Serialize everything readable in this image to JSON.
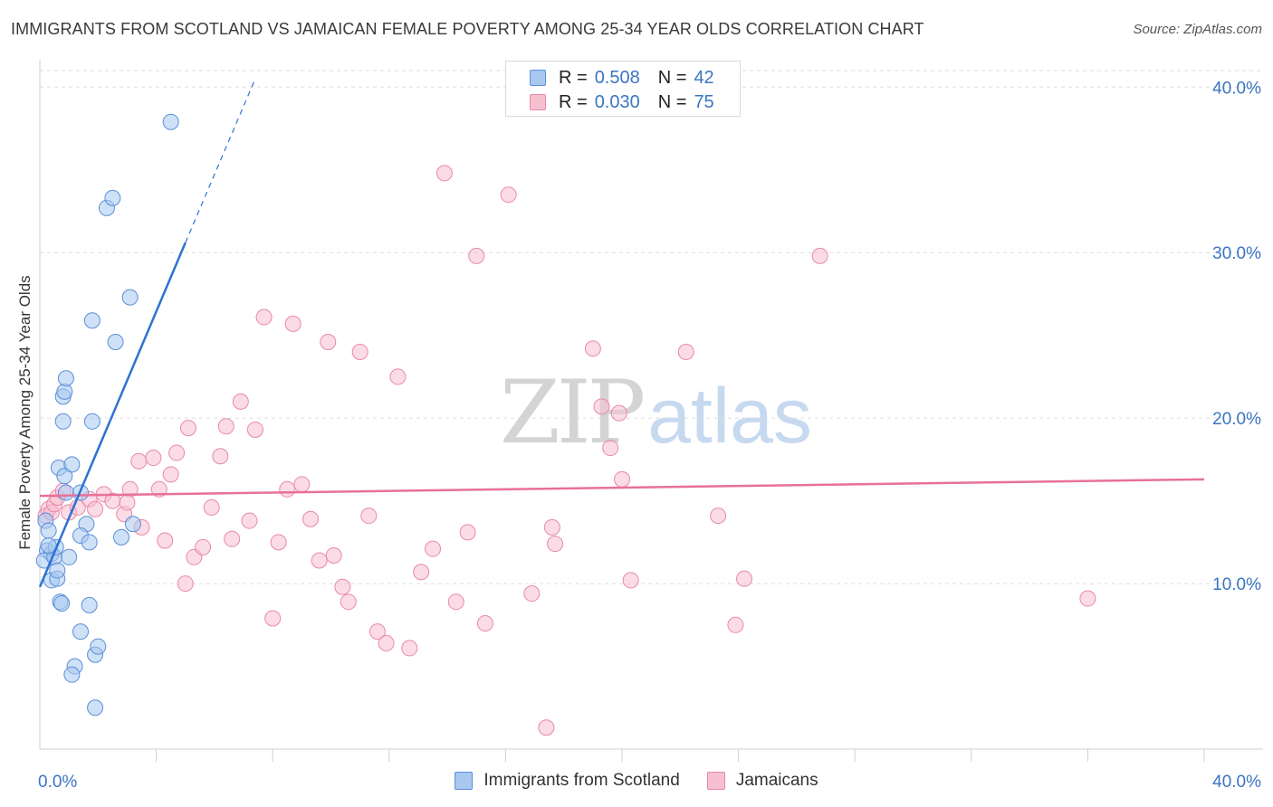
{
  "title": "IMMIGRANTS FROM SCOTLAND VS JAMAICAN FEMALE POVERTY AMONG 25-34 YEAR OLDS CORRELATION CHART",
  "source": "Source: ZipAtlas.com",
  "watermark": {
    "zip": "ZIP",
    "atlas": "atlas"
  },
  "legend_top": {
    "rows": [
      {
        "r_label": "R =",
        "r_value": "0.508",
        "n_label": "N =",
        "n_value": "42"
      },
      {
        "r_label": "R =",
        "r_value": "0.030",
        "n_label": "N =",
        "n_value": "75"
      }
    ]
  },
  "legend_bottom": {
    "items": [
      {
        "label": "Immigrants from Scotland"
      },
      {
        "label": "Jamaicans"
      }
    ]
  },
  "colors": {
    "blue_fill": "#a8c8f0",
    "blue_stroke": "#5b8fd6",
    "blue_line": "#2d72d2",
    "pink_fill": "#f7c0d1",
    "pink_stroke": "#e889a7",
    "pink_line": "#e8709a",
    "axis_label": "#3a75c4",
    "grid": "#dddddd"
  },
  "chart_data": {
    "type": "scatter",
    "title": "IMMIGRANTS FROM SCOTLAND VS JAMAICAN FEMALE POVERTY AMONG 25-34 YEAR OLDS CORRELATION CHART",
    "xlabel": "",
    "ylabel": "Female Poverty Among 25-34 Year Olds",
    "xlim": [
      0,
      40
    ],
    "ylim": [
      0,
      41
    ],
    "x_tick_labels": [
      {
        "value": 0,
        "label": "0.0%"
      },
      {
        "value": 40,
        "label": "40.0%"
      }
    ],
    "y_tick_labels": [
      {
        "value": 10,
        "label": "10.0%"
      },
      {
        "value": 20,
        "label": "20.0%"
      },
      {
        "value": 30,
        "label": "30.0%"
      },
      {
        "value": 40,
        "label": "40.0%"
      }
    ],
    "x_minor_ticks": [
      4,
      8,
      12,
      16,
      20,
      24,
      28,
      32,
      36,
      40
    ],
    "series": [
      {
        "name": "Immigrants from Scotland",
        "color": "blue",
        "r": 0.508,
        "n": 42,
        "trend": {
          "x0": 0,
          "y0": 9.8,
          "x1": 5.0,
          "y1": 30.6,
          "dash_x1": 7.4,
          "dash_y1": 40.5
        },
        "points": [
          [
            0.2,
            13.8
          ],
          [
            0.3,
            13.2
          ],
          [
            0.25,
            12.0
          ],
          [
            0.4,
            11.8
          ],
          [
            0.15,
            11.4
          ],
          [
            0.5,
            11.6
          ],
          [
            0.55,
            12.2
          ],
          [
            0.4,
            10.2
          ],
          [
            0.6,
            10.3
          ],
          [
            0.6,
            10.8
          ],
          [
            0.7,
            8.9
          ],
          [
            0.75,
            8.8
          ],
          [
            0.65,
            17.0
          ],
          [
            0.85,
            16.5
          ],
          [
            1.1,
            17.2
          ],
          [
            0.9,
            15.5
          ],
          [
            1.4,
            15.5
          ],
          [
            0.8,
            19.8
          ],
          [
            0.8,
            21.3
          ],
          [
            0.85,
            21.6
          ],
          [
            0.9,
            22.4
          ],
          [
            1.8,
            19.8
          ],
          [
            1.6,
            13.6
          ],
          [
            1.4,
            12.9
          ],
          [
            1.7,
            12.5
          ],
          [
            1.7,
            8.7
          ],
          [
            1.4,
            7.1
          ],
          [
            1.2,
            5.0
          ],
          [
            1.1,
            4.5
          ],
          [
            1.9,
            5.7
          ],
          [
            2.0,
            6.2
          ],
          [
            1.9,
            2.5
          ],
          [
            2.8,
            12.8
          ],
          [
            3.2,
            13.6
          ],
          [
            1.8,
            25.9
          ],
          [
            2.6,
            24.6
          ],
          [
            3.1,
            27.3
          ],
          [
            2.3,
            32.7
          ],
          [
            2.5,
            33.3
          ],
          [
            4.5,
            37.9
          ],
          [
            1.0,
            11.6
          ],
          [
            0.3,
            12.3
          ]
        ]
      },
      {
        "name": "Jamaicans",
        "color": "pink",
        "r": 0.03,
        "n": 75,
        "trend": {
          "x0": 0,
          "y0": 15.3,
          "x1": 40,
          "y1": 16.3
        },
        "points": [
          [
            0.2,
            14.1
          ],
          [
            0.3,
            14.5
          ],
          [
            0.4,
            14.3
          ],
          [
            0.5,
            14.8
          ],
          [
            0.6,
            15.2
          ],
          [
            0.8,
            15.6
          ],
          [
            1.0,
            14.3
          ],
          [
            1.3,
            14.6
          ],
          [
            1.7,
            15.1
          ],
          [
            1.9,
            14.5
          ],
          [
            2.2,
            15.4
          ],
          [
            2.5,
            15.0
          ],
          [
            2.9,
            14.2
          ],
          [
            3.1,
            15.7
          ],
          [
            3.5,
            13.4
          ],
          [
            3.4,
            17.4
          ],
          [
            3.9,
            17.6
          ],
          [
            4.1,
            15.7
          ],
          [
            4.3,
            12.6
          ],
          [
            4.5,
            16.6
          ],
          [
            4.7,
            17.9
          ],
          [
            5.1,
            19.4
          ],
          [
            5.3,
            11.6
          ],
          [
            5.6,
            12.2
          ],
          [
            5.9,
            14.6
          ],
          [
            6.2,
            17.7
          ],
          [
            6.4,
            19.5
          ],
          [
            6.6,
            12.7
          ],
          [
            6.9,
            21.0
          ],
          [
            7.2,
            13.8
          ],
          [
            7.4,
            19.3
          ],
          [
            7.7,
            26.1
          ],
          [
            8.0,
            7.9
          ],
          [
            8.2,
            12.5
          ],
          [
            8.5,
            15.7
          ],
          [
            8.7,
            25.7
          ],
          [
            9.0,
            16.0
          ],
          [
            9.3,
            13.9
          ],
          [
            9.6,
            11.4
          ],
          [
            9.9,
            24.6
          ],
          [
            10.1,
            11.7
          ],
          [
            10.4,
            9.8
          ],
          [
            10.6,
            8.9
          ],
          [
            11.0,
            24.0
          ],
          [
            11.3,
            14.1
          ],
          [
            11.6,
            7.1
          ],
          [
            11.9,
            6.4
          ],
          [
            12.3,
            22.5
          ],
          [
            12.7,
            6.1
          ],
          [
            13.1,
            10.7
          ],
          [
            13.5,
            12.1
          ],
          [
            13.9,
            34.8
          ],
          [
            14.3,
            8.9
          ],
          [
            14.7,
            13.1
          ],
          [
            15.0,
            29.8
          ],
          [
            15.3,
            7.6
          ],
          [
            16.1,
            33.5
          ],
          [
            16.9,
            9.4
          ],
          [
            17.4,
            1.3
          ],
          [
            17.6,
            13.4
          ],
          [
            17.7,
            12.4
          ],
          [
            19.0,
            24.2
          ],
          [
            19.3,
            20.7
          ],
          [
            19.6,
            18.2
          ],
          [
            19.9,
            20.3
          ],
          [
            20.0,
            16.3
          ],
          [
            20.3,
            10.2
          ],
          [
            22.2,
            24.0
          ],
          [
            23.3,
            14.1
          ],
          [
            23.9,
            7.5
          ],
          [
            24.2,
            10.3
          ],
          [
            26.8,
            29.8
          ],
          [
            36.0,
            9.1
          ],
          [
            5.0,
            10.0
          ],
          [
            3.0,
            14.9
          ]
        ]
      }
    ]
  }
}
